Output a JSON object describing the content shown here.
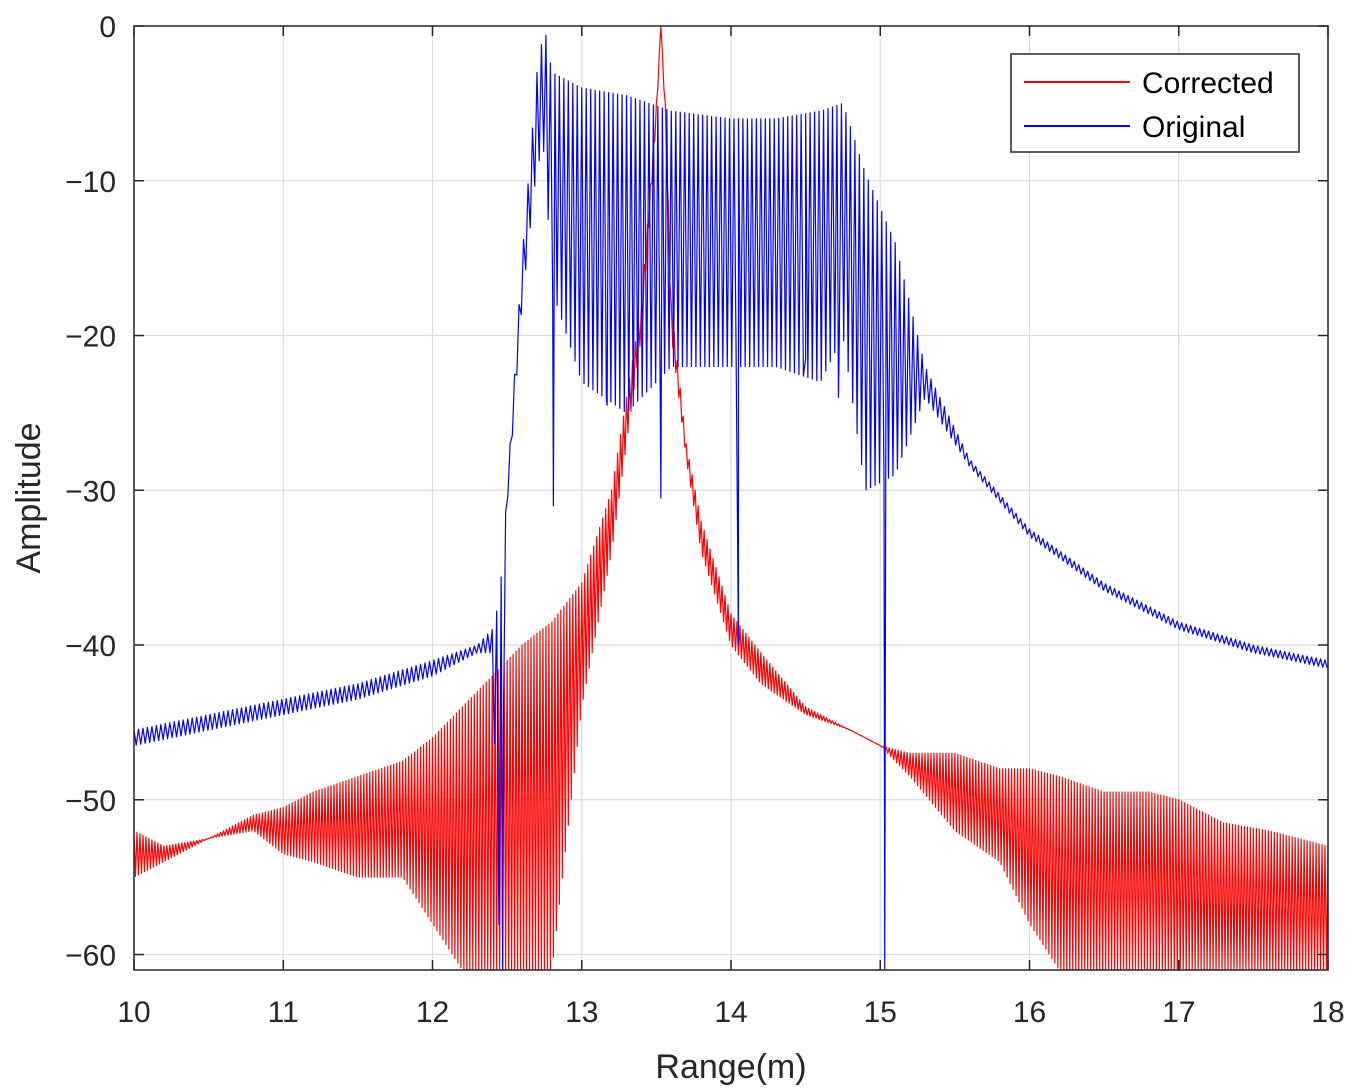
{
  "chart_data": {
    "type": "line",
    "title": "",
    "xlabel": "Range(m)",
    "ylabel": "Amplitude",
    "xlim": [
      10,
      18
    ],
    "ylim": [
      -61,
      0
    ],
    "grid": true,
    "legend_position": "top-right",
    "x_ticks": [
      10,
      11,
      12,
      13,
      14,
      15,
      16,
      17,
      18
    ],
    "x_tick_labels": [
      "10",
      "11",
      "12",
      "13",
      "14",
      "15",
      "16",
      "17",
      "18"
    ],
    "y_ticks": [
      0,
      -10,
      -20,
      -30,
      -40,
      -50,
      -60
    ],
    "y_tick_labels": [
      "0",
      "−10",
      "−20",
      "−30",
      "−40",
      "−50",
      "−60"
    ],
    "series": [
      {
        "name": "Corrected",
        "color": "#ff0000",
        "oscillation_period": 0.02,
        "envelope_x": [
          10.0,
          10.2,
          10.5,
          10.8,
          11.0,
          11.2,
          11.5,
          11.8,
          12.0,
          12.2,
          12.4,
          12.6,
          12.8,
          13.0,
          13.2,
          13.4,
          13.5,
          13.53,
          13.56,
          13.6,
          13.7,
          13.8,
          14.0,
          14.2,
          14.5,
          14.8,
          15.0,
          15.2,
          15.5,
          15.8,
          16.0,
          16.2,
          16.5,
          16.8,
          17.0,
          17.3,
          17.6,
          18.0
        ],
        "envelope_upper": [
          -52,
          -53,
          -52.5,
          -51,
          -50.5,
          -49.5,
          -48.5,
          -47.5,
          -46,
          -44,
          -42,
          -40,
          -38.5,
          -36,
          -30,
          -18,
          -5,
          0,
          -5,
          -18,
          -27,
          -32,
          -38,
          -40.5,
          -44,
          -45.5,
          -46.5,
          -47,
          -47,
          -48,
          -48,
          -48.5,
          -49.5,
          -49.5,
          -50,
          -51.5,
          -52,
          -53
        ],
        "envelope_lower": [
          -55,
          -54,
          -52.5,
          -52,
          -53.5,
          -54,
          -55,
          -55,
          -58,
          -61,
          -61,
          -61,
          -61,
          -44,
          -34,
          -20,
          -6,
          0,
          -6,
          -20,
          -28,
          -34,
          -40,
          -42.5,
          -44.5,
          -45.5,
          -46.5,
          -48.5,
          -52,
          -54,
          -58,
          -61,
          -61,
          -61,
          -61,
          -61,
          -61,
          -61
        ]
      },
      {
        "name": "Original",
        "color": "#0000ff",
        "oscillation_period": 0.03,
        "envelope_x": [
          10.0,
          10.5,
          11.0,
          11.5,
          12.0,
          12.3,
          12.4,
          12.45,
          12.5,
          12.6,
          12.7,
          12.75,
          12.8,
          13.0,
          13.3,
          13.6,
          14.0,
          14.3,
          14.6,
          14.75,
          14.9,
          15.1,
          15.3,
          15.6,
          16.0,
          16.5,
          17.0,
          17.5,
          18.0
        ],
        "envelope_upper": [
          -45.5,
          -44.5,
          -43.5,
          -42.5,
          -41,
          -40,
          -39,
          -37,
          -30,
          -15,
          -3,
          0,
          -3,
          -4,
          -4.5,
          -5.5,
          -6,
          -6,
          -5.5,
          -5,
          -9.5,
          -14,
          -22,
          -28,
          -32.5,
          -36,
          -38.5,
          -40,
          -41
        ],
        "envelope_lower": [
          -46.5,
          -45.5,
          -44.5,
          -43.5,
          -42,
          -40.5,
          -40.5,
          -60,
          -31,
          -18,
          -9,
          -8,
          -17,
          -23,
          -25,
          -22,
          -22,
          -22,
          -23,
          -20,
          -30,
          -29,
          -24,
          -28.5,
          -33,
          -36.5,
          -39,
          -40.5,
          -41.5
        ],
        "dips": [
          {
            "x": 12.47,
            "y": -61
          },
          {
            "x": 12.81,
            "y": -31
          },
          {
            "x": 13.17,
            "y": -24.5
          },
          {
            "x": 13.53,
            "y": -30.5
          },
          {
            "x": 14.05,
            "y": -40
          },
          {
            "x": 14.5,
            "y": -21.5
          },
          {
            "x": 14.72,
            "y": -24
          },
          {
            "x": 15.03,
            "y": -61
          }
        ]
      }
    ]
  }
}
